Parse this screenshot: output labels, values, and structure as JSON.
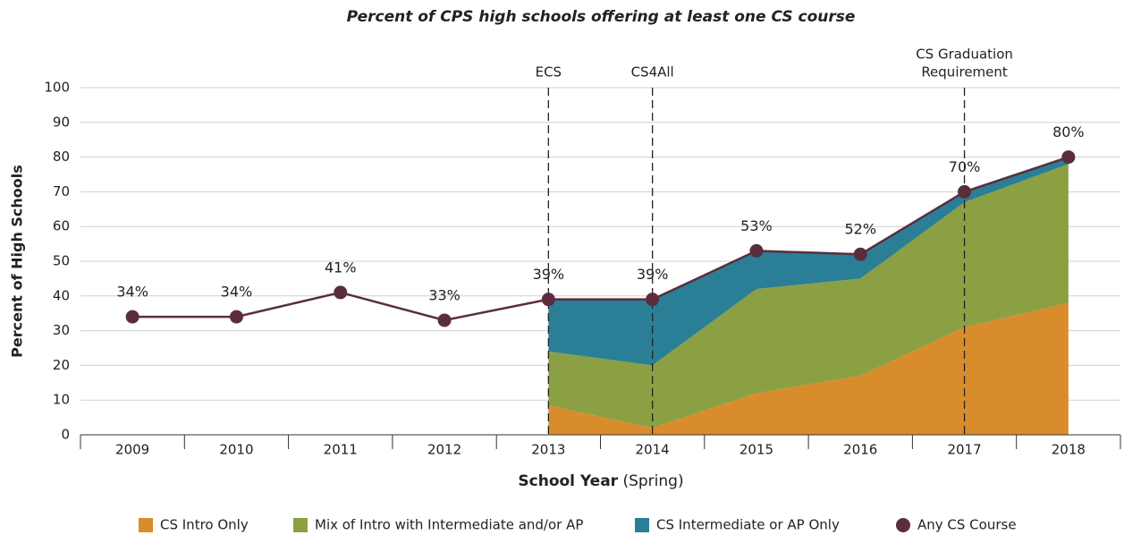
{
  "chart_data": {
    "type": "stacked_area_line",
    "title": "Percent of CPS high schools offering at least one CS course",
    "x_label": "School Year",
    "x_label_note": "(Spring)",
    "y_label": "Percent of High Schools",
    "categories": [
      "2009",
      "2010",
      "2011",
      "2012",
      "2013",
      "2014",
      "2015",
      "2016",
      "2017",
      "2018"
    ],
    "ylim": [
      0,
      100
    ],
    "yticks": [
      0,
      10,
      20,
      30,
      40,
      50,
      60,
      70,
      80,
      90,
      100
    ],
    "grid": true,
    "legend": "bottom",
    "series": [
      {
        "name": "CS Intro Only",
        "color": "#d98c2b",
        "kind": "area",
        "values": [
          null,
          null,
          null,
          null,
          8.5,
          2,
          12,
          17,
          31,
          38
        ]
      },
      {
        "name": "Mix of Intro with Intermediate and/or AP",
        "color": "#8aa043",
        "kind": "area",
        "values": [
          null,
          null,
          null,
          null,
          15.5,
          18,
          30,
          28,
          36,
          40
        ]
      },
      {
        "name": "CS Intermediate or AP Only",
        "color": "#2a7f97",
        "kind": "area",
        "values": [
          null,
          null,
          null,
          null,
          15,
          19,
          11,
          7,
          3,
          2
        ]
      },
      {
        "name": "Any CS Course",
        "color": "#5b2d3d",
        "kind": "line",
        "values": [
          34,
          34,
          41,
          33,
          39,
          39,
          53,
          52,
          70,
          80
        ],
        "value_labels": [
          "34%",
          "34%",
          "41%",
          "33%",
          "39%",
          "39%",
          "53%",
          "52%",
          "70%",
          "80%"
        ]
      }
    ],
    "annotations": [
      {
        "x": "2013",
        "lines": [
          "ECS"
        ]
      },
      {
        "x": "2014",
        "lines": [
          "CS4All"
        ]
      },
      {
        "x": "2017",
        "lines": [
          "CS Graduation",
          "Requirement"
        ]
      }
    ]
  }
}
